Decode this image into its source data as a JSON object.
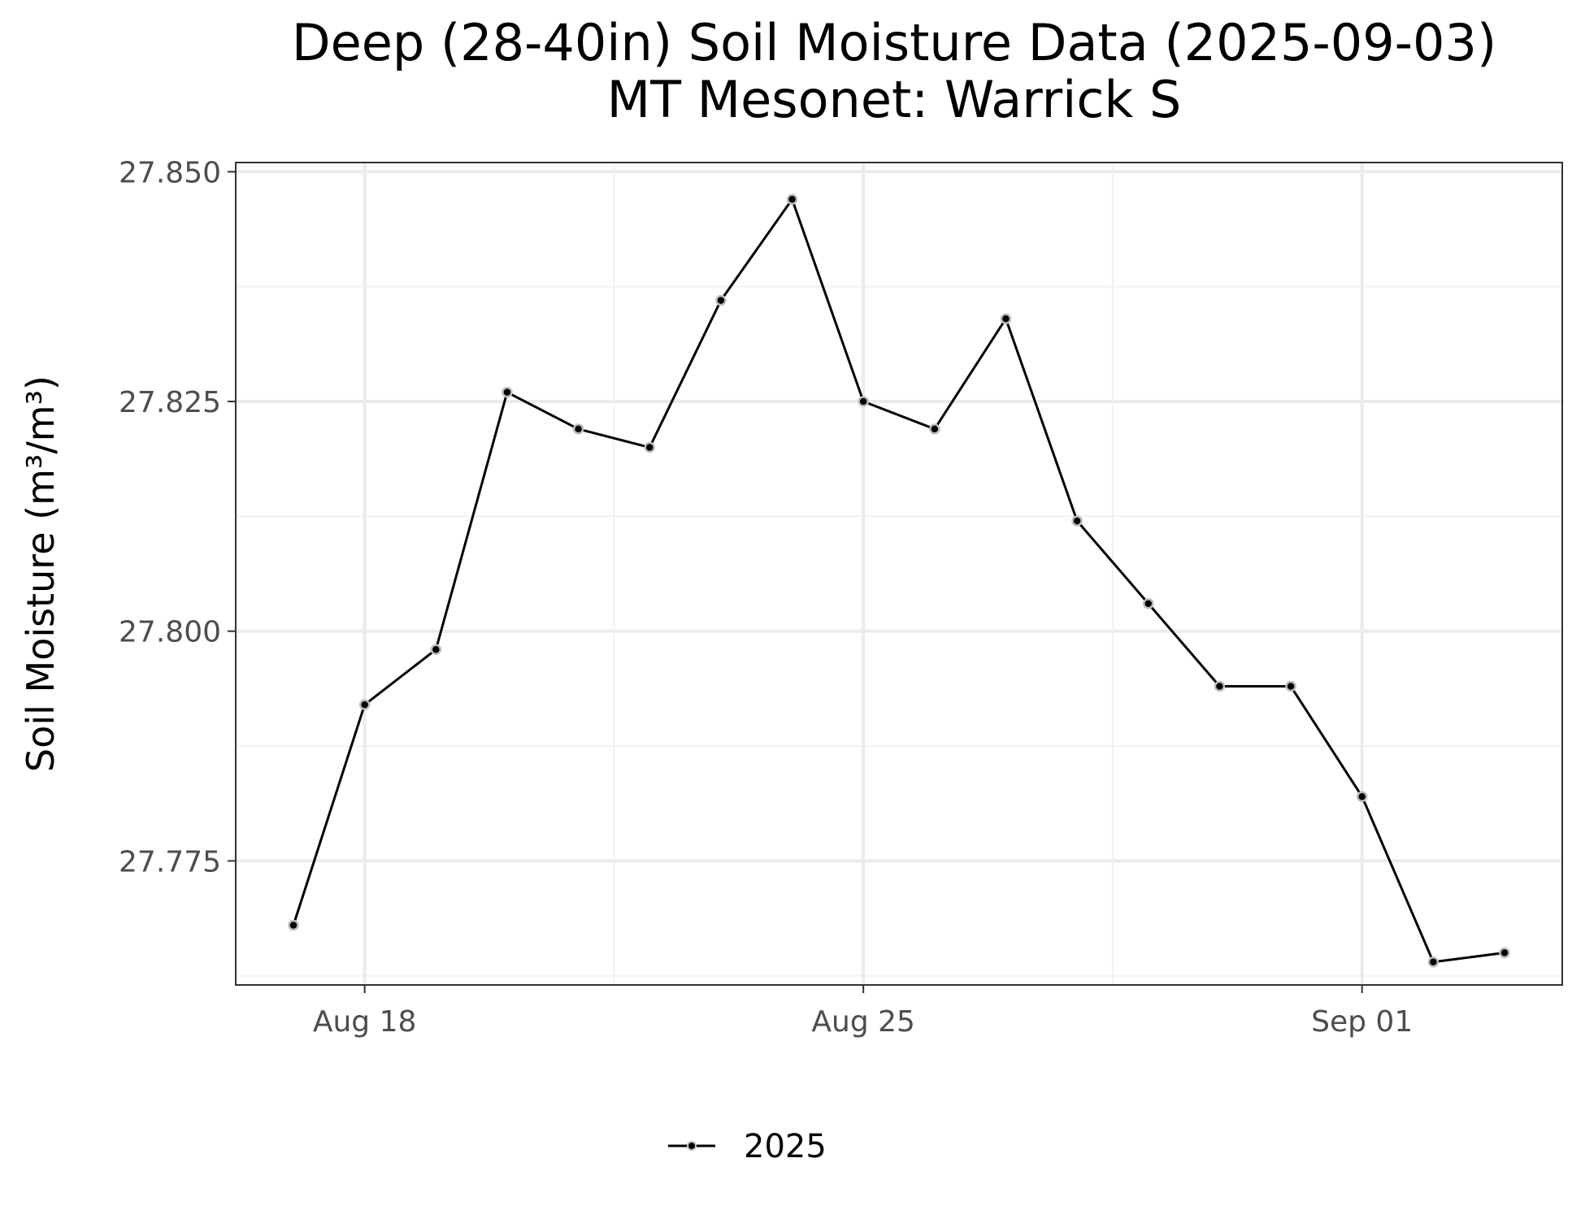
{
  "chart_data": {
    "type": "line",
    "title": "Deep (28-40in) Soil Moisture Data (2025-09-03)",
    "subtitle": "MT Mesonet: Warrick S",
    "xlabel": "",
    "ylabel": "Soil Moisture (m³/m³)",
    "x": [
      "2025-08-17",
      "2025-08-18",
      "2025-08-19",
      "2025-08-20",
      "2025-08-21",
      "2025-08-22",
      "2025-08-23",
      "2025-08-24",
      "2025-08-25",
      "2025-08-26",
      "2025-08-27",
      "2025-08-28",
      "2025-08-29",
      "2025-08-30",
      "2025-08-31",
      "2025-09-01",
      "2025-09-02",
      "2025-09-03"
    ],
    "series": [
      {
        "name": "2025",
        "values": [
          27.768,
          27.792,
          27.798,
          27.826,
          27.822,
          27.82,
          27.836,
          27.847,
          27.825,
          27.822,
          27.834,
          27.812,
          27.803,
          27.794,
          27.794,
          27.782,
          27.764,
          27.765
        ]
      }
    ],
    "xticks": [
      {
        "date": "2025-08-18",
        "label": "Aug 18"
      },
      {
        "date": "2025-08-25",
        "label": "Aug 25"
      },
      {
        "date": "2025-09-01",
        "label": "Sep 01"
      }
    ],
    "yticks": [
      27.775,
      27.8,
      27.825,
      27.85
    ],
    "ytick_labels": [
      "27.775",
      "27.800",
      "27.825",
      "27.850"
    ],
    "xlim": [
      "2025-08-16",
      "2025-09-03"
    ],
    "ylim": [
      27.7615,
      27.851
    ],
    "grid": true,
    "legend": {
      "position": "bottom",
      "entries": [
        "2025"
      ]
    },
    "colors": {
      "line": "#000000",
      "point_outline": "#bdbdbd",
      "grid_major": "#ebebeb",
      "grid_minor": "#f2f2f2",
      "panel_border": "#333333"
    }
  }
}
